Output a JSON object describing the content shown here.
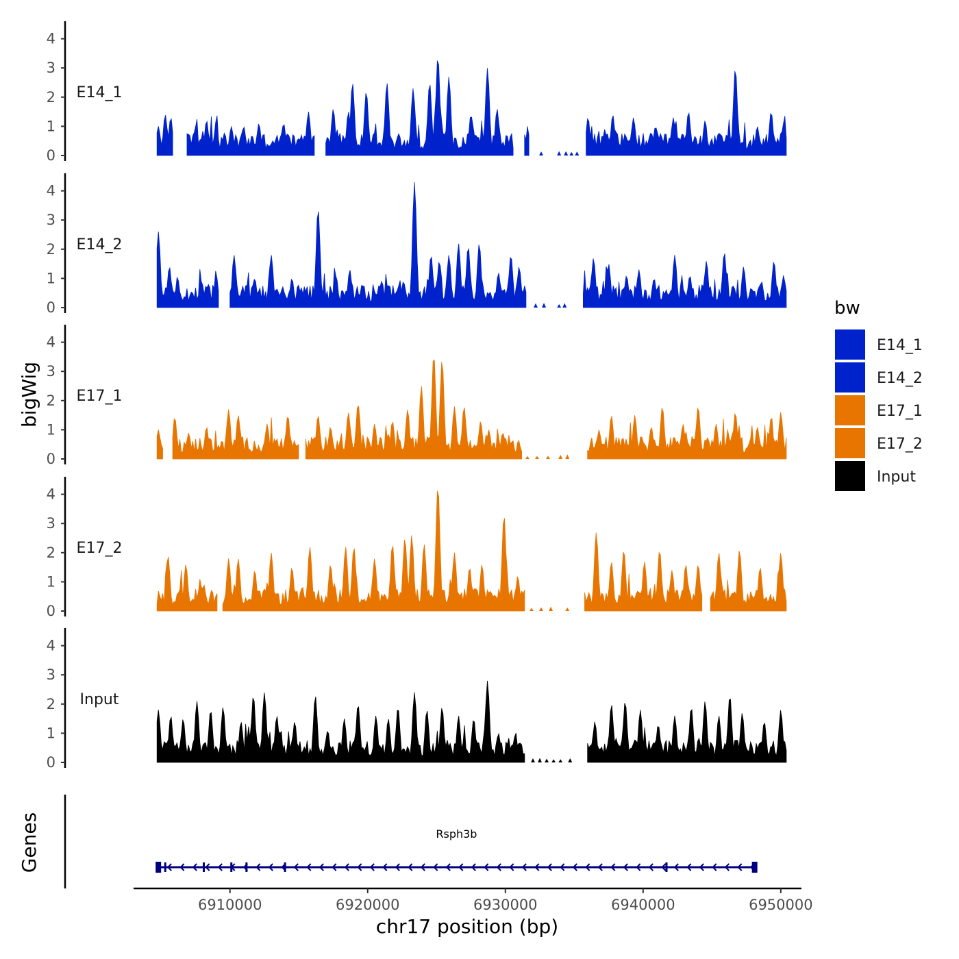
{
  "chart_data": {
    "type": "area",
    "chromosome": "chr17",
    "xlabel": "chr17 position (bp)",
    "ylabel": "bigWig",
    "gene_track_label": "Genes",
    "legend_title": "bw",
    "xlim": [
      6903000,
      6951500
    ],
    "x_region": [
      6904700,
      6950400
    ],
    "x_ticks": [
      6910000,
      6920000,
      6930000,
      6940000,
      6950000
    ],
    "x_tick_labels": [
      "6910000",
      "6920000",
      "6930000",
      "6940000",
      "6950000"
    ],
    "ylim": [
      0,
      4.5
    ],
    "y_ticks": [
      0,
      1,
      2,
      3,
      4
    ],
    "y_tick_labels": [
      "0",
      "1",
      "2",
      "3",
      "4"
    ],
    "legend": [
      {
        "name": "E14_1",
        "color": "#0022CC"
      },
      {
        "name": "E14_2",
        "color": "#0022CC"
      },
      {
        "name": "E17_1",
        "color": "#E87500"
      },
      {
        "name": "E17_2",
        "color": "#E87500"
      },
      {
        "name": "Input",
        "color": "#000000"
      }
    ],
    "series": [
      {
        "name": "E14_1",
        "color": "#0022CC",
        "gaps": [
          [
            6905900,
            6906800
          ],
          [
            6916200,
            6916900
          ],
          [
            6930600,
            6931300
          ],
          [
            6931800,
            6935800
          ]
        ],
        "peaks": [
          [
            6904800,
            1.0
          ],
          [
            6905300,
            1.4
          ],
          [
            6905700,
            1.3
          ],
          [
            6907500,
            1.0
          ],
          [
            6908300,
            1.2
          ],
          [
            6910100,
            1.0
          ],
          [
            6911000,
            1.0
          ],
          [
            6912100,
            1.1
          ],
          [
            6913900,
            1.1
          ],
          [
            6915700,
            1.5
          ],
          [
            6917500,
            1.6
          ],
          [
            6918600,
            1.5
          ],
          [
            6918900,
            2.5
          ],
          [
            6919900,
            2.2
          ],
          [
            6921400,
            2.5
          ],
          [
            6923300,
            2.3
          ],
          [
            6924500,
            2.5
          ],
          [
            6925100,
            3.4
          ],
          [
            6925900,
            2.7
          ],
          [
            6927500,
            1.4
          ],
          [
            6928700,
            3.0
          ],
          [
            6929400,
            1.6
          ],
          [
            6936000,
            1.3
          ],
          [
            6937800,
            1.4
          ],
          [
            6939300,
            1.3
          ],
          [
            6940900,
            1.0
          ],
          [
            6942200,
            1.3
          ],
          [
            6943300,
            1.5
          ],
          [
            6944500,
            1.2
          ],
          [
            6946700,
            3.0
          ],
          [
            6948300,
            1.0
          ],
          [
            6949300,
            1.5
          ],
          [
            6950200,
            1.1
          ]
        ],
        "dots": [
          6931600,
          6932600,
          6933900,
          6934400,
          6934800,
          6935200
        ]
      },
      {
        "name": "E14_2",
        "color": "#0022CC",
        "gaps": [
          [
            6909200,
            6909900
          ],
          [
            6931500,
            6935600
          ]
        ],
        "peaks": [
          [
            6904800,
            2.6
          ],
          [
            6905600,
            1.4
          ],
          [
            6906200,
            1.0
          ],
          [
            6907900,
            0.9
          ],
          [
            6909000,
            1.1
          ],
          [
            6910300,
            1.8
          ],
          [
            6911800,
            1.0
          ],
          [
            6913000,
            1.8
          ],
          [
            6914500,
            1.0
          ],
          [
            6916400,
            3.4
          ],
          [
            6917700,
            1.1
          ],
          [
            6918700,
            1.3
          ],
          [
            6919600,
            0.8
          ],
          [
            6921000,
            0.9
          ],
          [
            6922600,
            0.9
          ],
          [
            6923400,
            4.3
          ],
          [
            6924600,
            1.8
          ],
          [
            6925200,
            1.6
          ],
          [
            6925900,
            1.8
          ],
          [
            6926600,
            2.2
          ],
          [
            6927300,
            2.1
          ],
          [
            6928100,
            2.2
          ],
          [
            6929500,
            1.2
          ],
          [
            6930400,
            1.8
          ],
          [
            6931000,
            1.4
          ],
          [
            6936400,
            1.7
          ],
          [
            6937500,
            1.5
          ],
          [
            6938800,
            1.1
          ],
          [
            6939700,
            1.3
          ],
          [
            6940800,
            1.0
          ],
          [
            6942300,
            1.8
          ],
          [
            6943400,
            1.1
          ],
          [
            6944600,
            1.6
          ],
          [
            6945900,
            1.9
          ],
          [
            6947300,
            1.4
          ],
          [
            6948600,
            0.9
          ],
          [
            6949500,
            1.6
          ],
          [
            6950200,
            1.1
          ]
        ],
        "dots": [
          6932200,
          6932800,
          6933900,
          6934300
        ]
      },
      {
        "name": "E17_1",
        "color": "#E87500",
        "gaps": [
          [
            6905200,
            6905800
          ],
          [
            6915000,
            6915400
          ],
          [
            6931200,
            6935900
          ]
        ],
        "peaks": [
          [
            6904800,
            1.0
          ],
          [
            6906000,
            1.4
          ],
          [
            6907000,
            0.9
          ],
          [
            6908300,
            1.1
          ],
          [
            6909900,
            1.7
          ],
          [
            6910600,
            1.5
          ],
          [
            6912700,
            1.2
          ],
          [
            6914200,
            1.5
          ],
          [
            6916400,
            1.5
          ],
          [
            6917300,
            1.1
          ],
          [
            6918600,
            1.6
          ],
          [
            6919300,
            1.9
          ],
          [
            6920500,
            1.2
          ],
          [
            6921800,
            1.3
          ],
          [
            6922900,
            1.7
          ],
          [
            6923900,
            2.5
          ],
          [
            6924800,
            3.6
          ],
          [
            6925400,
            3.4
          ],
          [
            6926300,
            1.8
          ],
          [
            6927000,
            1.8
          ],
          [
            6928200,
            1.3
          ],
          [
            6928800,
            1.0
          ],
          [
            6929800,
            0.9
          ],
          [
            6930500,
            0.6
          ],
          [
            6936800,
            1.0
          ],
          [
            6937700,
            1.5
          ],
          [
            6939400,
            1.5
          ],
          [
            6940600,
            1.1
          ],
          [
            6941400,
            1.8
          ],
          [
            6942900,
            1.2
          ],
          [
            6944000,
            1.8
          ],
          [
            6945300,
            1.2
          ],
          [
            6946700,
            1.6
          ],
          [
            6948300,
            1.1
          ],
          [
            6949300,
            1.4
          ],
          [
            6950000,
            1.6
          ]
        ],
        "dots": [
          6931600,
          6932300,
          6933100,
          6934000,
          6934500
        ]
      },
      {
        "name": "E17_2",
        "color": "#E87500",
        "gaps": [
          [
            6909100,
            6909400
          ],
          [
            6931400,
            6935700
          ],
          [
            6944300,
            6944800
          ]
        ],
        "peaks": [
          [
            6904900,
            0.5
          ],
          [
            6905500,
            1.9
          ],
          [
            6906800,
            1.6
          ],
          [
            6908100,
            0.9
          ],
          [
            6909900,
            1.8
          ],
          [
            6910600,
            1.8
          ],
          [
            6911800,
            1.4
          ],
          [
            6913000,
            2.0
          ],
          [
            6914500,
            1.5
          ],
          [
            6915800,
            2.2
          ],
          [
            6917300,
            1.6
          ],
          [
            6918400,
            2.2
          ],
          [
            6919000,
            2.2
          ],
          [
            6920500,
            1.8
          ],
          [
            6921800,
            2.3
          ],
          [
            6922700,
            2.5
          ],
          [
            6923200,
            2.6
          ],
          [
            6924100,
            2.3
          ],
          [
            6925100,
            4.3
          ],
          [
            6926300,
            2.0
          ],
          [
            6927400,
            1.5
          ],
          [
            6928300,
            1.6
          ],
          [
            6929900,
            3.3
          ],
          [
            6930900,
            1.2
          ],
          [
            6936600,
            2.7
          ],
          [
            6937700,
            1.7
          ],
          [
            6938600,
            2.1
          ],
          [
            6940100,
            1.7
          ],
          [
            6941200,
            2.1
          ],
          [
            6942100,
            1.4
          ],
          [
            6943100,
            1.6
          ],
          [
            6944000,
            1.6
          ],
          [
            6945500,
            2.0
          ],
          [
            6947000,
            2.1
          ],
          [
            6948500,
            1.5
          ],
          [
            6950000,
            2.0
          ]
        ],
        "dots": [
          6931900,
          6932600,
          6933300,
          6934500
        ]
      },
      {
        "name": "Input",
        "color": "#000000",
        "gaps": [
          [
            6931400,
            6935900
          ]
        ],
        "peaks": [
          [
            6904800,
            1.8
          ],
          [
            6905700,
            1.6
          ],
          [
            6906600,
            1.5
          ],
          [
            6907600,
            2.1
          ],
          [
            6908600,
            1.8
          ],
          [
            6909500,
            1.9
          ],
          [
            6910800,
            1.4
          ],
          [
            6911700,
            2.3
          ],
          [
            6912500,
            2.4
          ],
          [
            6913400,
            1.6
          ],
          [
            6914700,
            1.4
          ],
          [
            6916200,
            2.3
          ],
          [
            6917100,
            1.1
          ],
          [
            6918300,
            1.5
          ],
          [
            6919300,
            2.0
          ],
          [
            6920600,
            1.6
          ],
          [
            6921500,
            1.5
          ],
          [
            6922200,
            1.9
          ],
          [
            6923400,
            2.4
          ],
          [
            6924300,
            1.8
          ],
          [
            6925400,
            1.9
          ],
          [
            6926600,
            1.6
          ],
          [
            6927700,
            1.5
          ],
          [
            6928700,
            2.8
          ],
          [
            6929500,
            1.0
          ],
          [
            6930700,
            0.9
          ],
          [
            6936500,
            1.4
          ],
          [
            6937700,
            2.0
          ],
          [
            6938700,
            2.1
          ],
          [
            6939800,
            1.8
          ],
          [
            6941100,
            1.3
          ],
          [
            6942300,
            1.6
          ],
          [
            6943500,
            1.9
          ],
          [
            6944500,
            2.1
          ],
          [
            6945500,
            1.6
          ],
          [
            6946300,
            2.3
          ],
          [
            6947200,
            1.7
          ],
          [
            6948800,
            1.4
          ],
          [
            6950000,
            1.8
          ]
        ],
        "dots": [
          6932000,
          6932500,
          6933000,
          6933500,
          6934000,
          6934700
        ]
      }
    ],
    "genes": [
      {
        "name": "Rsph3b",
        "start": 6904700,
        "end": 6948200,
        "strand": "-",
        "exons": [
          6904800,
          6905300,
          6908100,
          6910100,
          6911200,
          6914000,
          6941700,
          6948100
        ]
      }
    ]
  }
}
